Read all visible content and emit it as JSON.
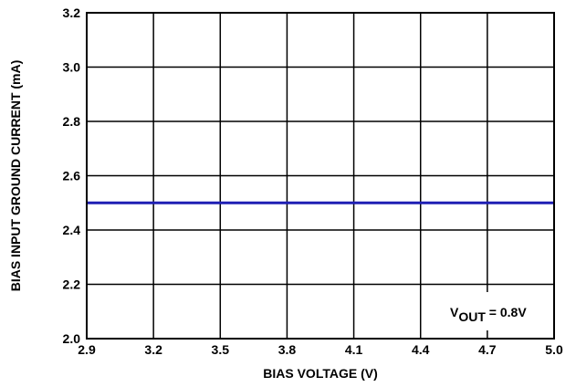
{
  "chart_data": {
    "type": "line",
    "title": "",
    "xlabel": "BIAS VOLTAGE (V)",
    "ylabel": "BIAS INPUT GROUND CURRENT (mA)",
    "xlim": [
      2.9,
      5.0
    ],
    "ylim": [
      2.0,
      3.2
    ],
    "x_ticks": [
      2.9,
      3.2,
      3.5,
      3.8,
      4.1,
      4.4,
      4.7,
      5.0
    ],
    "x_tick_labels": [
      "2.9",
      "3.2",
      "3.5",
      "3.8",
      "4.1",
      "4.4",
      "4.7",
      "5.0"
    ],
    "y_ticks": [
      2.0,
      2.2,
      2.4,
      2.6,
      2.8,
      3.0,
      3.2
    ],
    "y_tick_labels": [
      "2.0",
      "2.2",
      "2.4",
      "2.6",
      "2.8",
      "3.0",
      "3.2"
    ],
    "grid": true,
    "series": [
      {
        "color": "#1f1fb4",
        "x": [
          2.9,
          5.0
        ],
        "y": [
          2.5,
          2.5
        ]
      }
    ],
    "annotation": {
      "main": "V",
      "sub": "OUT",
      "rest": " = 0.8V",
      "position": "bottom-right"
    }
  }
}
